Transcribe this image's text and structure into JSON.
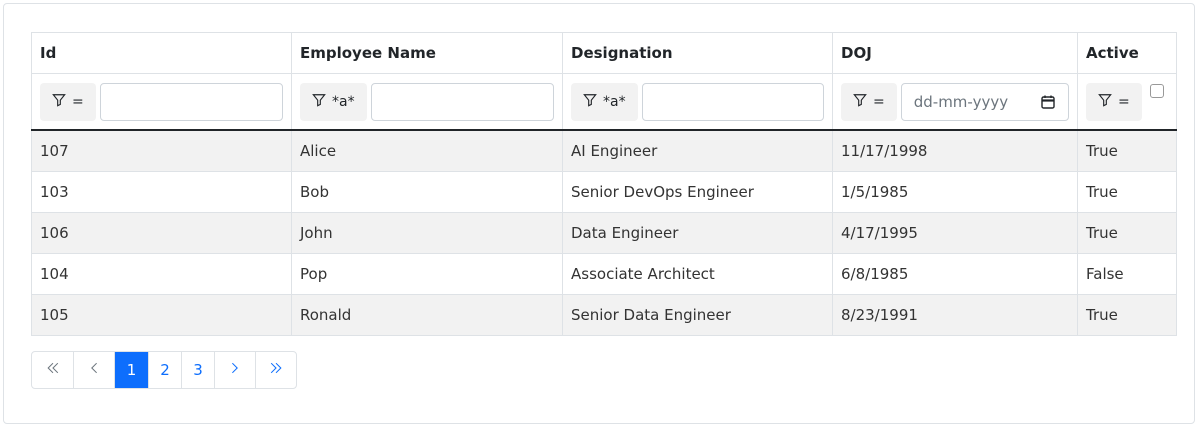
{
  "table": {
    "columns": [
      "Id",
      "Employee Name",
      "Designation",
      "DOJ",
      "Active"
    ],
    "filters": [
      {
        "operator": "=",
        "value": ""
      },
      {
        "operator": "*a*",
        "value": ""
      },
      {
        "operator": "*a*",
        "value": ""
      },
      {
        "operator": "=",
        "placeholder": "dd-mm-yyyy"
      },
      {
        "operator": "=",
        "checked": false
      }
    ],
    "rows": [
      [
        "107",
        "Alice",
        "AI Engineer",
        "11/17/1998",
        "True"
      ],
      [
        "103",
        "Bob",
        "Senior DevOps Engineer",
        "1/5/1985",
        "True"
      ],
      [
        "106",
        "John",
        "Data Engineer",
        "4/17/1995",
        "True"
      ],
      [
        "104",
        "Pop",
        "Associate Architect",
        "6/8/1985",
        "False"
      ],
      [
        "105",
        "Ronald",
        "Senior Data Engineer",
        "8/23/1991",
        "True"
      ]
    ]
  },
  "pager": {
    "first_icon": "double-chevron-left-icon",
    "prev_icon": "chevron-left-icon",
    "pages": [
      "1",
      "2",
      "3"
    ],
    "active_page": "1",
    "next_icon": "chevron-right-icon",
    "last_icon": "double-chevron-right-icon"
  },
  "colors": {
    "accent": "#0d6efd",
    "stripe": "#f2f2f2",
    "border": "#dee2e6"
  }
}
